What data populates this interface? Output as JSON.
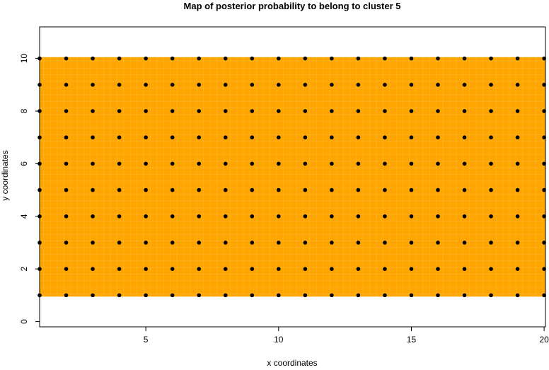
{
  "chart_data": {
    "type": "heatmap",
    "title": "Map of posterior probability to belong to cluster  5",
    "xlabel": "x coordinates",
    "ylabel": "y coordinates",
    "xlim": [
      1,
      20.05
    ],
    "ylim": [
      -0.2,
      11.2
    ],
    "xticks": [
      5,
      10,
      15,
      20
    ],
    "yticks": [
      0,
      2,
      4,
      6,
      8,
      10
    ],
    "fill_color": "#FFA500",
    "fill_region": {
      "x": [
        1,
        20
      ],
      "y": [
        1,
        10
      ]
    },
    "points": {
      "x_range": [
        1,
        20
      ],
      "y_range": [
        1,
        10
      ],
      "step": 1,
      "color": "#000000"
    }
  }
}
